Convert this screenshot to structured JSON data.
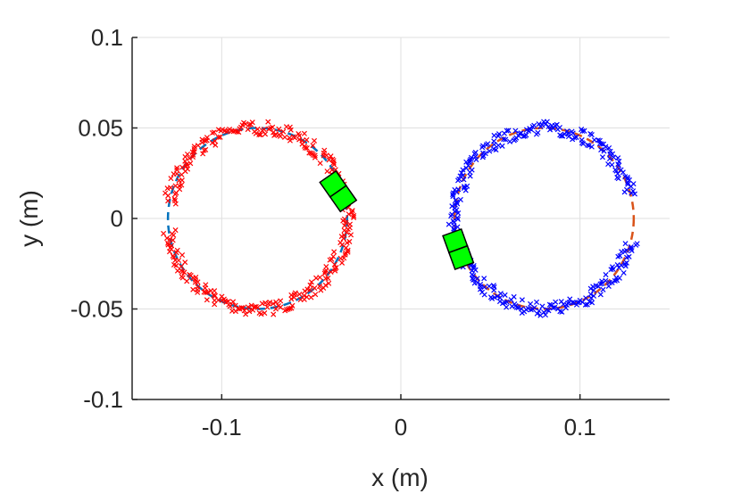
{
  "chart_data": {
    "type": "scatter",
    "xlabel": "x (m)",
    "ylabel": "y (m)",
    "xlim": [
      -0.15,
      0.15
    ],
    "ylim": [
      -0.1,
      0.1
    ],
    "xticks": [
      -0.1,
      0,
      0.1
    ],
    "xtick_labels": [
      "-0.1",
      "0",
      "0.1"
    ],
    "yticks": [
      -0.1,
      -0.05,
      0,
      0.05,
      0.1
    ],
    "ytick_labels": [
      "-0.1",
      "-0.05",
      "0",
      "0.05",
      "0.1"
    ],
    "grid": true,
    "colors": {
      "left_markers": "#ff0000",
      "left_reference": "#0072bd",
      "right_markers": "#0000ff",
      "right_reference": "#d95319",
      "vehicle_fill": "#00ff00",
      "vehicle_edge": "#000000"
    },
    "circles": [
      {
        "center": [
          -0.08,
          0.0
        ],
        "radius": 0.05,
        "markers": "red-x-markers",
        "reference_line": "blue-dashed",
        "marker_arc_start_deg": 188,
        "marker_arc_end_deg": 530,
        "vehicle": {
          "position": [
            -0.035,
            0.015
          ],
          "heading_deg": -55
        }
      },
      {
        "center": [
          0.08,
          0.0
        ],
        "radius": 0.05,
        "markers": "blue-x-markers",
        "reference_line": "orange-dashed",
        "marker_arc_start_deg": 15,
        "marker_arc_end_deg": 345,
        "vehicle": {
          "position": [
            0.032,
            -0.017
          ],
          "heading_deg": -70
        }
      }
    ]
  }
}
